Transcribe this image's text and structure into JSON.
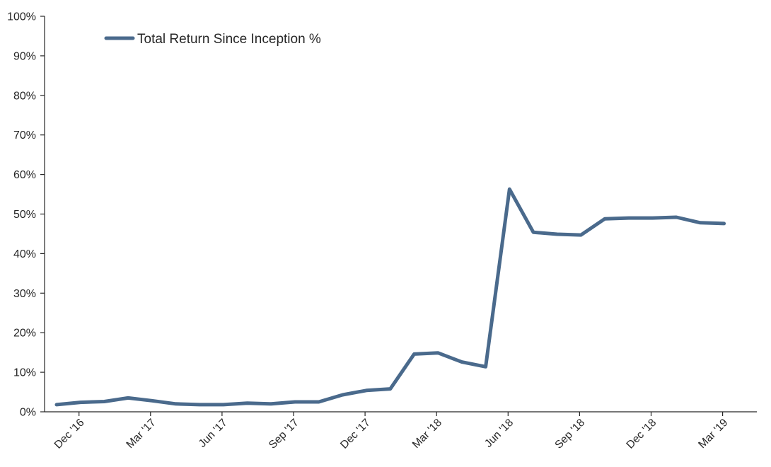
{
  "chart_data": {
    "type": "line",
    "title": "",
    "xlabel": "",
    "ylabel": "",
    "ylim": [
      0,
      100
    ],
    "y_ticks": [
      "0%",
      "10%",
      "20%",
      "30%",
      "40%",
      "50%",
      "60%",
      "70%",
      "80%",
      "90%",
      "100%"
    ],
    "x_tick_labels": [
      "Dec '16",
      "Mar '17",
      "Jun '17",
      "Sep '17",
      "Dec '17",
      "Mar '18",
      "Jun '18",
      "Sep '18",
      "Dec '18",
      "Mar '19"
    ],
    "x_tick_label_month_index": [
      0,
      3,
      6,
      9,
      12,
      15,
      18,
      21,
      24,
      27
    ],
    "month_count": 28,
    "legend": {
      "position": "top-left",
      "entries": [
        "Total Return Since Inception %"
      ]
    },
    "series": [
      {
        "name": "Total Return Since Inception %",
        "color": "#4a6a8c",
        "values": [
          1.8,
          2.4,
          2.6,
          3.5,
          2.8,
          2.0,
          1.8,
          1.8,
          2.2,
          2.0,
          2.5,
          2.5,
          4.3,
          5.4,
          5.8,
          14.6,
          14.9,
          12.6,
          11.4,
          56.3,
          45.4,
          44.9,
          44.7,
          48.8,
          49.0,
          49.0,
          49.2,
          47.8,
          47.6
        ],
        "point_note": "one value per month starting Nov '16 (index -0.5 offset handled by x positions)"
      }
    ]
  }
}
